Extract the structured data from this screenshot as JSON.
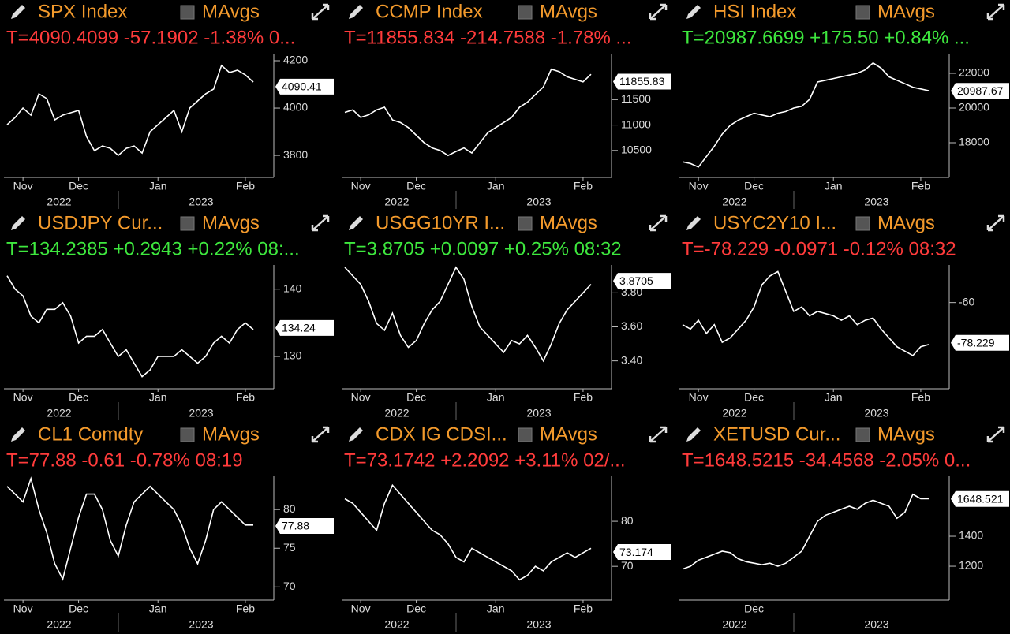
{
  "chart_data": [
    {
      "type": "line",
      "title": "SPX Index",
      "legend": "MAvgs",
      "quote": "T=4090.4099 -57.1902 -1.38% 0...",
      "quote_color": "#ff3b3b",
      "categories": [
        null,
        null,
        "Nov",
        null,
        null,
        null,
        null,
        null,
        null,
        "Dec",
        null,
        null,
        null,
        null,
        null,
        null,
        null,
        null,
        null,
        "Jan",
        null,
        null,
        null,
        null,
        null,
        null,
        null,
        null,
        null,
        null,
        "Feb",
        null
      ],
      "years": [
        "2022",
        "2023"
      ],
      "series": [
        {
          "color": "#ffffff",
          "values": [
            3930,
            3960,
            4000,
            3970,
            4060,
            4040,
            3950,
            3970,
            3980,
            3990,
            3880,
            3820,
            3840,
            3830,
            3800,
            3830,
            3840,
            3810,
            3900,
            3930,
            3960,
            3990,
            3900,
            4000,
            4030,
            4060,
            4080,
            4180,
            4150,
            4160,
            4140,
            4110
          ]
        }
      ],
      "last_price": 4090.41,
      "ylim": [
        3707,
        4230
      ],
      "yticks": [
        3800,
        4000,
        4200
      ]
    },
    {
      "type": "line",
      "title": "CCMP Index",
      "legend": "MAvgs",
      "quote": "T=11855.834 -214.7588 -1.78% ...",
      "quote_color": "#ff3b3b",
      "categories": [
        null,
        null,
        "Nov",
        null,
        null,
        null,
        null,
        null,
        null,
        "Dec",
        null,
        null,
        null,
        null,
        null,
        null,
        null,
        null,
        null,
        "Jan",
        null,
        null,
        null,
        null,
        null,
        null,
        null,
        null,
        null,
        null,
        "Feb",
        null
      ],
      "years": [
        "2022",
        "2023"
      ],
      "series": [
        {
          "color": "#ffffff",
          "values": [
            11250,
            11300,
            11150,
            11200,
            11300,
            11350,
            11100,
            11050,
            10950,
            10800,
            10650,
            10550,
            10500,
            10400,
            10480,
            10550,
            10450,
            10650,
            10850,
            10950,
            11050,
            11150,
            11350,
            11450,
            11600,
            11750,
            12100,
            12050,
            11950,
            11900,
            11850,
            12000
          ]
        }
      ],
      "last_price": 11855.83,
      "ylim": [
        9969,
        12406
      ],
      "yticks": [
        10500,
        11000,
        11500
      ]
    },
    {
      "type": "line",
      "title": "HSI Index",
      "legend": "MAvgs",
      "quote": "T=20987.6699 +175.50 +0.84% ...",
      "quote_color": "#3ee83e",
      "categories": [
        null,
        null,
        "Nov",
        null,
        null,
        null,
        null,
        null,
        null,
        "Dec",
        null,
        null,
        null,
        null,
        null,
        null,
        null,
        null,
        null,
        "Jan",
        null,
        null,
        null,
        null,
        null,
        null,
        null,
        null,
        null,
        null,
        "Feb",
        null
      ],
      "years": [
        "2022",
        "2023"
      ],
      "series": [
        {
          "color": "#ffffff",
          "values": [
            16900,
            16800,
            16600,
            17200,
            17800,
            18500,
            19000,
            19300,
            19500,
            19700,
            19600,
            19500,
            19700,
            19800,
            20000,
            20100,
            20500,
            21500,
            21600,
            21700,
            21800,
            21900,
            22000,
            22200,
            22600,
            22300,
            21800,
            21600,
            21400,
            21200,
            21100,
            21000
          ]
        }
      ],
      "last_price": 20987.67,
      "ylim": [
        16000,
        23136
      ],
      "yticks": [
        18000,
        20000,
        22000
      ]
    },
    {
      "type": "line",
      "title": "USDJPY Cur...",
      "legend": "MAvgs",
      "quote": "T=134.2385 +0.2943 +0.22% 08:...",
      "quote_color": "#3ee83e",
      "categories": [
        null,
        null,
        "Nov",
        null,
        null,
        null,
        null,
        null,
        null,
        "Dec",
        null,
        null,
        null,
        null,
        null,
        null,
        null,
        null,
        null,
        "Jan",
        null,
        null,
        null,
        null,
        null,
        null,
        null,
        null,
        null,
        null,
        "Feb",
        null
      ],
      "years": [
        "2022",
        "2023"
      ],
      "series": [
        {
          "color": "#ffffff",
          "values": [
            142,
            140,
            139,
            136,
            135,
            137,
            137,
            138,
            136,
            132,
            133,
            133,
            134,
            132,
            130,
            131,
            129,
            127,
            128,
            130,
            130,
            130,
            131,
            130,
            129,
            130,
            132,
            133,
            132,
            134,
            135,
            134
          ]
        }
      ],
      "last_price": 134.24,
      "ylim": [
        125.2,
        143.6
      ],
      "yticks": [
        130,
        140
      ]
    },
    {
      "type": "line",
      "title": "USGG10YR I...",
      "legend": "MAvgs",
      "quote": "T=3.8705 +0.0097 +0.25% 08:32",
      "quote_color": "#3ee83e",
      "categories": [
        null,
        null,
        "Nov",
        null,
        null,
        null,
        null,
        null,
        null,
        "Dec",
        null,
        null,
        null,
        null,
        null,
        null,
        null,
        null,
        null,
        "Jan",
        null,
        null,
        null,
        null,
        null,
        null,
        null,
        null,
        null,
        null,
        "Feb",
        null
      ],
      "years": [
        "2022",
        "2023"
      ],
      "series": [
        {
          "color": "#ffffff",
          "values": [
            3.95,
            3.9,
            3.85,
            3.75,
            3.62,
            3.58,
            3.68,
            3.55,
            3.48,
            3.52,
            3.62,
            3.7,
            3.75,
            3.85,
            3.95,
            3.88,
            3.72,
            3.6,
            3.55,
            3.5,
            3.45,
            3.52,
            3.5,
            3.55,
            3.48,
            3.4,
            3.5,
            3.62,
            3.7,
            3.75,
            3.8,
            3.85
          ]
        }
      ],
      "last_price": 3.8705,
      "ylim": [
        3.236,
        3.964
      ],
      "yticks": [
        {
          "value": 3.4,
          "label": "3.40"
        },
        {
          "value": 3.6,
          "label": "3.60"
        },
        {
          "value": 3.8,
          "label": "3.80"
        }
      ]
    },
    {
      "type": "line",
      "title": "USYC2Y10 I...",
      "legend": "MAvgs",
      "quote": "T=-78.229 -0.0971 -0.12% 08:32",
      "quote_color": "#ff3b3b",
      "categories": [
        null,
        null,
        "Nov",
        null,
        null,
        null,
        null,
        null,
        null,
        "Dec",
        null,
        null,
        null,
        null,
        null,
        null,
        null,
        null,
        null,
        "Jan",
        null,
        null,
        null,
        null,
        null,
        null,
        null,
        null,
        null,
        null,
        "Feb",
        null
      ],
      "years": [
        "2022",
        "2023"
      ],
      "series": [
        {
          "color": "#ffffff",
          "values": [
            -70,
            -72,
            -68,
            -74,
            -70,
            -78,
            -76,
            -72,
            -68,
            -62,
            -52,
            -48,
            -46,
            -55,
            -64,
            -62,
            -66,
            -64,
            -65,
            -66,
            -68,
            -66,
            -70,
            -68,
            -67,
            -72,
            -76,
            -80,
            -82,
            -84,
            -80,
            -79
          ]
        }
      ],
      "last_price": -78.229,
      "ylim": [
        -99,
        -43
      ],
      "yticks": [
        -60
      ]
    },
    {
      "type": "line",
      "title": "CL1 Comdty",
      "legend": "MAvgs",
      "quote": "T=77.88 -0.61 -0.78% 08:19",
      "quote_color": "#ff3b3b",
      "categories": [
        null,
        null,
        "Nov",
        null,
        null,
        null,
        null,
        null,
        null,
        "Dec",
        null,
        null,
        null,
        null,
        null,
        null,
        null,
        null,
        null,
        "Jan",
        null,
        null,
        null,
        null,
        null,
        null,
        null,
        null,
        null,
        null,
        "Feb",
        null
      ],
      "years": [
        "2022",
        "2023"
      ],
      "series": [
        {
          "color": "#ffffff",
          "values": [
            83,
            82,
            81,
            84,
            80,
            77,
            73,
            71,
            75,
            79,
            82,
            82,
            80,
            76,
            74,
            78,
            81,
            82,
            83,
            82,
            81,
            80,
            78,
            75,
            73,
            76,
            80,
            81,
            80,
            79,
            78,
            78
          ]
        }
      ],
      "last_price": 77.88,
      "ylim": [
        68.3,
        84.3
      ],
      "yticks": [
        70,
        75,
        80
      ]
    },
    {
      "type": "line",
      "title": "CDX IG CDSI...",
      "legend": "MAvgs",
      "quote": "T=73.1742 +2.2092 +3.11% 02/...",
      "quote_color": "#ff3b3b",
      "categories": [
        null,
        null,
        "Nov",
        null,
        null,
        null,
        null,
        null,
        null,
        "Dec",
        null,
        null,
        null,
        null,
        null,
        null,
        null,
        null,
        null,
        "Jan",
        null,
        null,
        null,
        null,
        null,
        null,
        null,
        null,
        null,
        null,
        "Feb",
        null
      ],
      "years": [
        "2022",
        "2023"
      ],
      "series": [
        {
          "color": "#ffffff",
          "values": [
            85,
            84,
            82,
            80,
            78,
            84,
            88,
            86,
            84,
            82,
            80,
            78,
            77,
            75,
            72,
            71,
            74,
            73,
            72,
            71,
            70,
            69,
            67,
            68,
            70,
            69,
            71,
            72,
            73,
            72,
            73,
            74
          ]
        }
      ],
      "last_price": 73.174,
      "ylim": [
        62.5,
        90
      ],
      "yticks": [
        70,
        80
      ]
    },
    {
      "type": "line",
      "title": "XETUSD Cur...",
      "legend": "MAvgs",
      "quote": "T=1648.5215 -34.4568 -2.05% 0...",
      "quote_color": "#ff3b3b",
      "categories": [
        null,
        null,
        null,
        null,
        null,
        null,
        null,
        null,
        null,
        "Dec",
        null,
        null,
        null,
        null,
        null,
        null,
        null,
        null,
        null,
        null,
        null,
        null,
        null,
        null,
        null,
        null,
        null,
        null,
        null,
        null,
        null,
        null
      ],
      "years": [
        "2022",
        "2023"
      ],
      "series": [
        {
          "color": "#ffffff",
          "values": [
            1180,
            1200,
            1240,
            1260,
            1280,
            1300,
            1290,
            1250,
            1230,
            1220,
            1210,
            1220,
            1200,
            1220,
            1260,
            1300,
            1400,
            1500,
            1540,
            1560,
            1580,
            1600,
            1580,
            1620,
            1640,
            1620,
            1600,
            1520,
            1560,
            1680,
            1650,
            1650
          ]
        }
      ],
      "last_price": 1648.521,
      "ylim": [
        974,
        1800
      ],
      "yticks": [
        1200,
        1400
      ]
    }
  ]
}
